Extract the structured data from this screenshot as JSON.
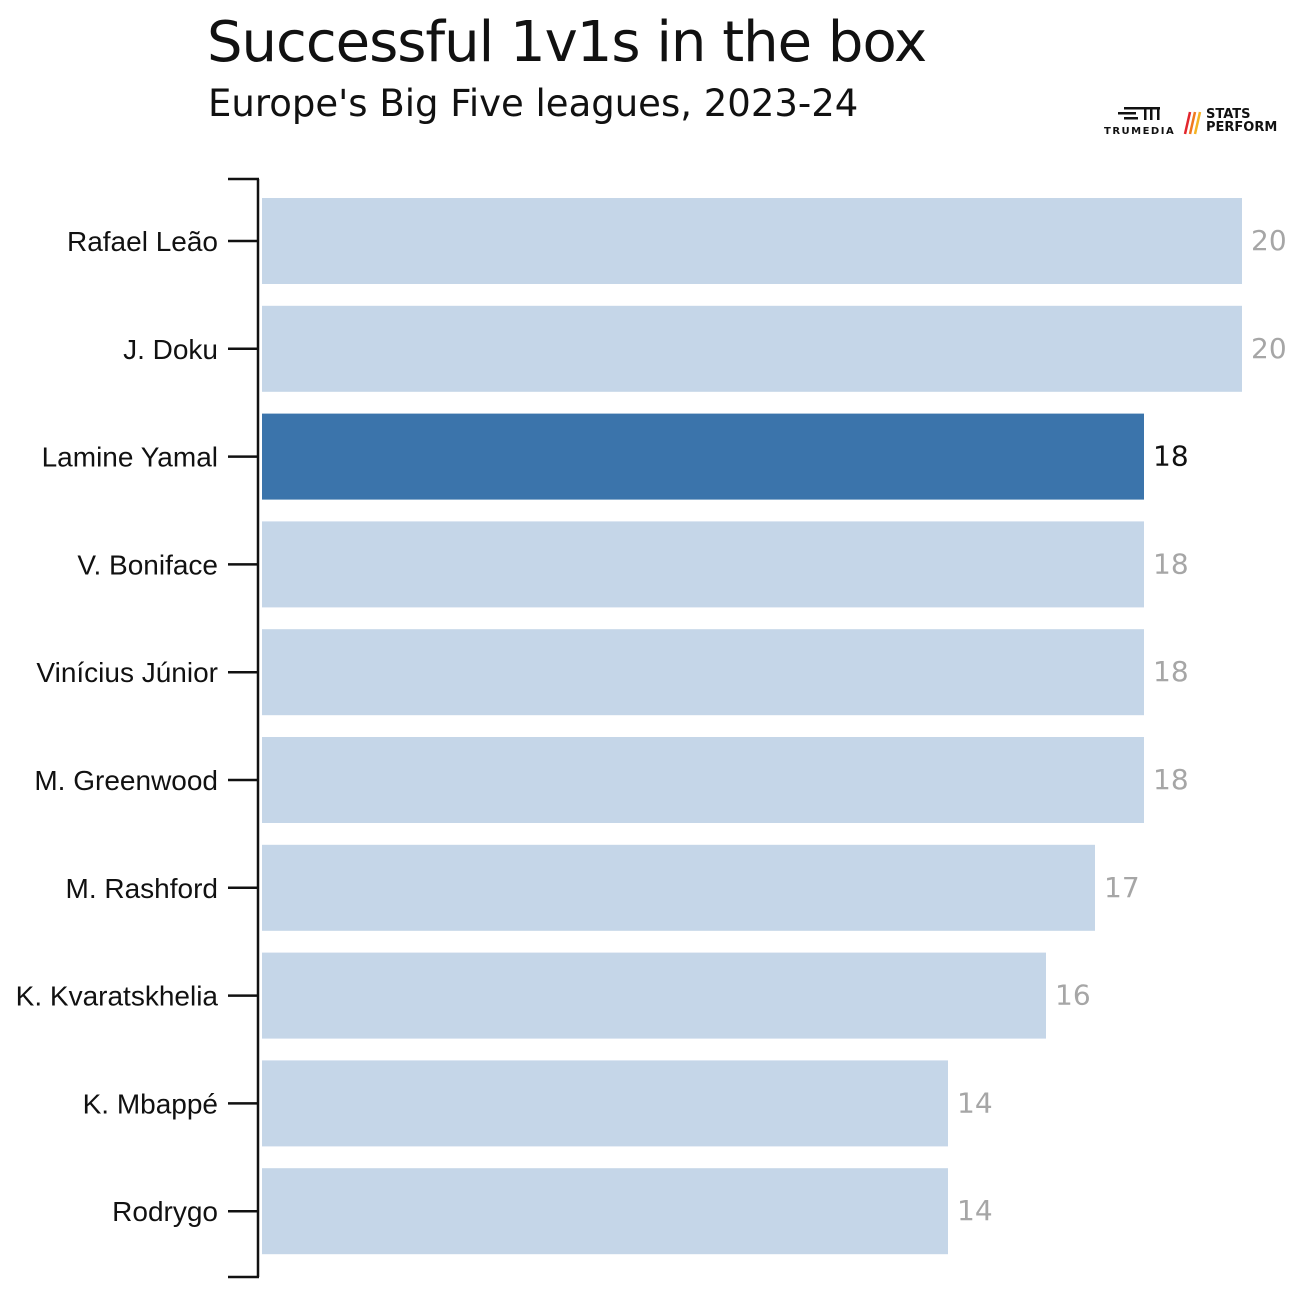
{
  "title": "Successful 1v1s in the box",
  "subtitle": "Europe's Big Five leagues, 2023-24",
  "logos": {
    "trumedia": "TRUMEDIA",
    "stats_perform": "STATS\nPERFORM"
  },
  "colors": {
    "bar": "#c5d6e8",
    "highlight_bar": "#3b74ab",
    "value_label": "#a6a6a6",
    "highlight_value_label": "#111111",
    "axis": "#111111",
    "stats_perform_accent": "#e2262d"
  },
  "chart_data": {
    "type": "bar",
    "orientation": "horizontal",
    "title": "Successful 1v1s in the box",
    "subtitle": "Europe's Big Five leagues, 2023-24",
    "categories": [
      "Rafael Leão",
      "J. Doku",
      "Lamine Yamal",
      "V. Boniface",
      "Vinícius Júnior",
      "M. Greenwood",
      "M. Rashford",
      "K. Kvaratskhelia",
      "K. Mbappé",
      "Rodrygo"
    ],
    "values": [
      20,
      20,
      18,
      18,
      18,
      18,
      17,
      16,
      14,
      14
    ],
    "highlight": "Lamine Yamal",
    "xlim": [
      0,
      20
    ],
    "grid": false,
    "legend": "none"
  }
}
